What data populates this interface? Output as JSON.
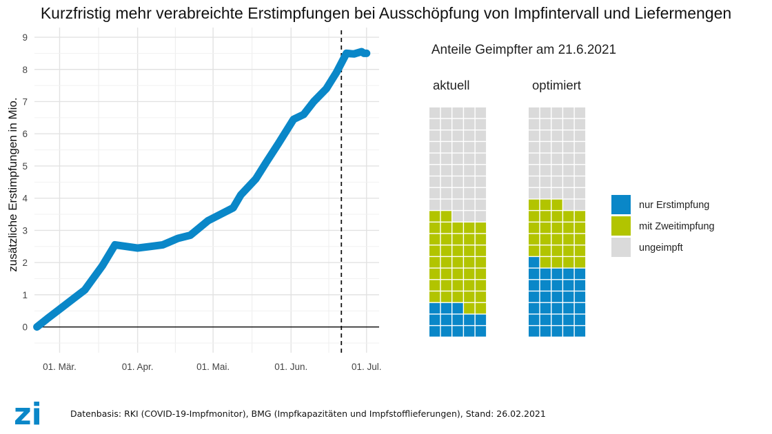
{
  "page_title": "Kurzfristig mehr verabreichte Erstimpfungen bei Ausschöpfung von Impfintervall und Liefermengen",
  "chart_data": [
    {
      "type": "line",
      "title": "Kurzfristig mehr verabreichte Erstimpfungen bei Ausschöpfung von Impfintervall und Liefermengen",
      "xlabel": "",
      "ylabel": "zusätzliche Erstimpfungen in Mio.",
      "x_ticks": [
        {
          "label": "01. Mär.",
          "day": 0
        },
        {
          "label": "01. Apr.",
          "day": 31
        },
        {
          "label": "01. Mai.",
          "day": 61
        },
        {
          "label": "01. Jun.",
          "day": 92
        },
        {
          "label": "01. Jul.",
          "day": 122
        }
      ],
      "xlim": [
        -10,
        127
      ],
      "ylim": [
        -0.8,
        9.3
      ],
      "y_ticks": [
        0,
        1,
        2,
        3,
        4,
        5,
        6,
        7,
        8,
        9
      ],
      "vline_day": 112,
      "series": [
        {
          "name": "zusätzliche Erstimpfungen",
          "color": "#0a87c8",
          "x": [
            -9,
            -5,
            0,
            5,
            10,
            17,
            22,
            31,
            36,
            41,
            47,
            52,
            59,
            64,
            69,
            72,
            78,
            82,
            87,
            93,
            97,
            101,
            106,
            110,
            114,
            117,
            120,
            121,
            122
          ],
          "y": [
            0,
            0.25,
            0.55,
            0.85,
            1.15,
            1.9,
            2.55,
            2.45,
            2.5,
            2.55,
            2.75,
            2.85,
            3.3,
            3.5,
            3.7,
            4.1,
            4.6,
            5.1,
            5.7,
            6.45,
            6.6,
            7.0,
            7.4,
            7.9,
            8.5,
            8.48,
            8.55,
            8.5,
            8.5
          ]
        }
      ]
    },
    {
      "type": "waffle",
      "title": "Anteile Geimpfter am 21.6.2021",
      "columns": 5,
      "rows": 20,
      "legend": [
        {
          "label": "nur Erstimpfung",
          "color": "#0a87c8"
        },
        {
          "label": "mit Zweitimpfung",
          "color": "#b2c400"
        },
        {
          "label": "ungeimpft",
          "color": "#dadada"
        }
      ],
      "panels": [
        {
          "label": "aktuell",
          "column_fill": [
            {
              "erst": 3,
              "zweit": 8
            },
            {
              "erst": 3,
              "zweit": 8
            },
            {
              "erst": 3,
              "zweit": 7
            },
            {
              "erst": 2,
              "zweit": 8
            },
            {
              "erst": 2,
              "zweit": 8
            }
          ]
        },
        {
          "label": "optimiert",
          "column_fill": [
            {
              "erst": 7,
              "zweit": 5
            },
            {
              "erst": 6,
              "zweit": 6
            },
            {
              "erst": 6,
              "zweit": 6
            },
            {
              "erst": 6,
              "zweit": 5
            },
            {
              "erst": 6,
              "zweit": 5
            }
          ]
        }
      ]
    }
  ],
  "footer": {
    "logo_text": "zi",
    "source": "Datenbasis: RKI (COVID-19-Impfmonitor), BMG (Impfkapazitäten und Impfstofflieferungen), Stand: 26.02.2021"
  }
}
